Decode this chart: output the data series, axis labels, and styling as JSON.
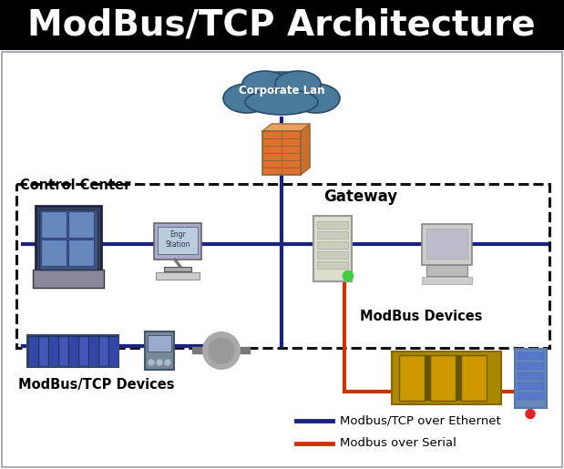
{
  "title": "ModBus/TCP Architecture",
  "title_fontsize": 28,
  "title_bg": "#000000",
  "title_color": "#ffffff",
  "bg_color": "#ffffff",
  "legend": [
    {
      "label": "Modbus/TCP over Ethernet",
      "color": "#1a237e"
    },
    {
      "label": "Modbus over Serial",
      "color": "#cc3300"
    }
  ],
  "labels": {
    "corporate_lan": "Corporate Lan",
    "control_center": "Control Center",
    "gateway": "Gateway",
    "modbus_devices": "ModBus Devices",
    "modbus_tcp_devices": "ModBus/TCP Devices"
  },
  "ethernet_color": "#1a237e",
  "serial_color": "#cc3300",
  "ethernet_lw": 3.0,
  "serial_lw": 3.0
}
